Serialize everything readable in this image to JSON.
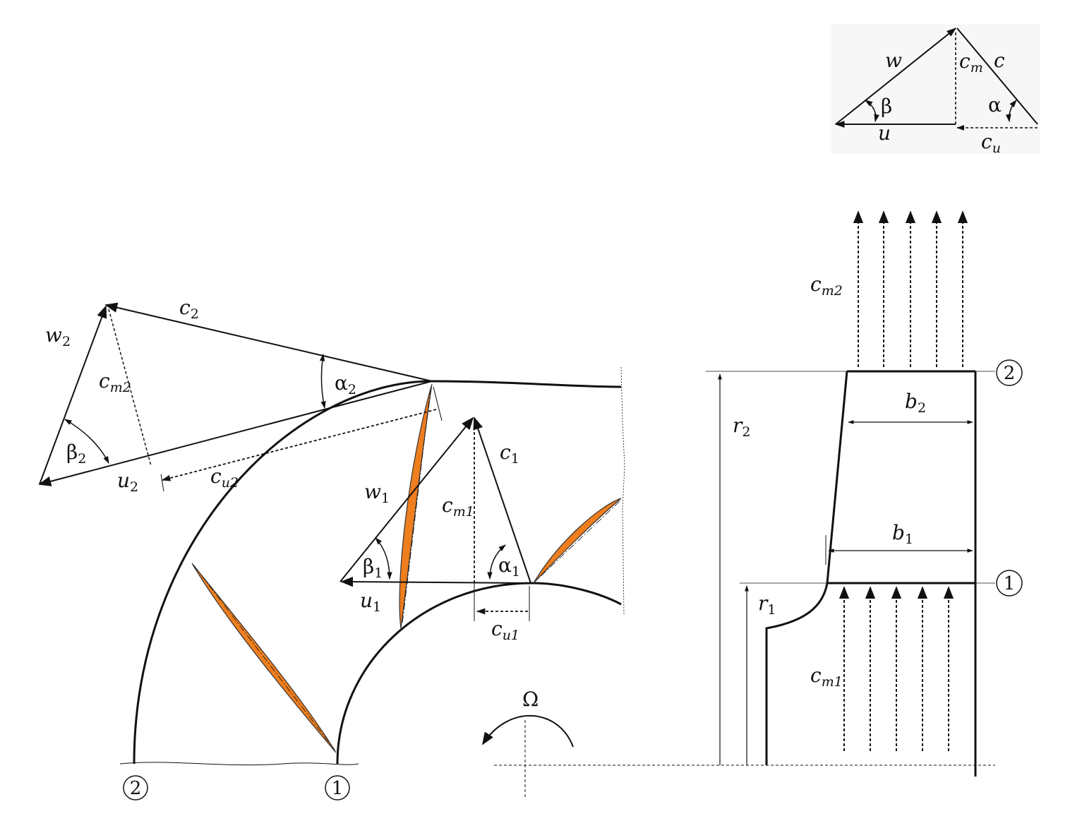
{
  "triangle_legend": {
    "w": "w",
    "c_m": "c",
    "c_m_sub": "m",
    "c": "c",
    "beta": "β",
    "alpha": "α",
    "u": "u",
    "c_u": "c",
    "c_u_sub": "u"
  },
  "outlet_triangle": {
    "w": "w",
    "w_sub": "2",
    "c": "c",
    "c_sub": "2",
    "c_m": "c",
    "c_m_sub": "m2",
    "alpha": "α",
    "alpha_sub": "2",
    "beta": "β",
    "beta_sub": "2",
    "u": "u",
    "u_sub": "2",
    "c_u": "c",
    "c_u_sub": "u2"
  },
  "inlet_triangle": {
    "w": "w",
    "w_sub": "1",
    "c": "c",
    "c_sub": "1",
    "c_m": "c",
    "c_m_sub": "m1",
    "alpha": "α",
    "alpha_sub": "1",
    "beta": "β",
    "beta_sub": "1",
    "u": "u",
    "u_sub": "1",
    "c_u": "c",
    "c_u_sub": "u1"
  },
  "rotation": {
    "omega": "Ω"
  },
  "station_markers": {
    "outlet": "2",
    "inlet": "1"
  },
  "meridional_view": {
    "c_m2": "c",
    "c_m2_sub": "m2",
    "c_m1": "c",
    "c_m1_sub": "m1",
    "r2": "r",
    "r2_sub": "2",
    "r1": "r",
    "r1_sub": "1",
    "b2": "b",
    "b2_sub": "2",
    "b1": "b",
    "b1_sub": "1"
  },
  "colors": {
    "blade_fill": "#ee7e1e",
    "line": "#111111"
  }
}
